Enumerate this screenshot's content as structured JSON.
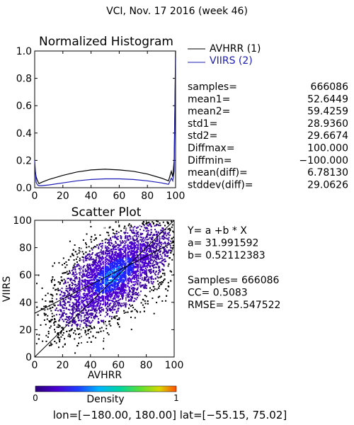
{
  "header": {
    "title": "VCI,  Nov. 17 2016 (week 46)"
  },
  "histogram": {
    "title": "Normalized Histogram",
    "legend": [
      {
        "label": "AVHRR (1)",
        "color": "#000000"
      },
      {
        "label": "VIIRS (2)",
        "color": "#1a1ab4"
      }
    ]
  },
  "stats": [
    {
      "label": "samples=",
      "value": "666086"
    },
    {
      "label": "mean1=",
      "value": "52.6449"
    },
    {
      "label": "mean2=",
      "value": "59.4259"
    },
    {
      "label": "std1=",
      "value": "28.9360"
    },
    {
      "label": "std2=",
      "value": "29.6674"
    },
    {
      "label": "Diffmax=",
      "value": "100.000"
    },
    {
      "label": "Diffmin=",
      "value": "−100.000"
    },
    {
      "label": "mean(diff)=",
      "value": "6.78130"
    },
    {
      "label": "stddev(diff)=",
      "value": "29.0626"
    }
  ],
  "scatter": {
    "title": "Scatter Plot",
    "xlabel": "AVHRR",
    "ylabel": "VIIRS",
    "regression": [
      "Y= a +b * X",
      "a= 31.991592",
      "b= 0.52112383",
      "",
      "Samples= 666086",
      "CC=  0.5083",
      "RMSE= 25.547522"
    ]
  },
  "colorbar": {
    "label": "Density",
    "min_label": "0",
    "max_label": "1"
  },
  "footer": {
    "text": "lon=[−180.00, 180.00] lat=[−55.15, 75.02]"
  },
  "chart_data": [
    {
      "type": "line",
      "xlim": [
        0,
        100
      ],
      "ylim": [
        0,
        1.0
      ],
      "xticks": [
        "0",
        "20",
        "40",
        "60",
        "80",
        "100"
      ],
      "yticks": [
        "0.0",
        "0.2",
        "0.4",
        "0.6",
        "0.8",
        "1.0"
      ],
      "series": [
        {
          "name": "AVHRR (1)",
          "color": "#000000",
          "x": [
            0,
            1,
            2,
            3,
            5,
            10,
            20,
            30,
            40,
            50,
            60,
            70,
            80,
            90,
            95,
            97,
            98,
            99,
            100
          ],
          "y": [
            0.15,
            0.08,
            0.05,
            0.03,
            0.04,
            0.06,
            0.09,
            0.115,
            0.13,
            0.135,
            0.13,
            0.12,
            0.1,
            0.07,
            0.05,
            0.12,
            0.08,
            0.2,
            1.0
          ]
        },
        {
          "name": "VIIRS (2)",
          "color": "#1a1ab4",
          "x": [
            0,
            1,
            2,
            3,
            5,
            10,
            20,
            30,
            40,
            50,
            60,
            70,
            80,
            90,
            95,
            97,
            98,
            99,
            100
          ],
          "y": [
            0.2,
            0.04,
            0.02,
            0.015,
            0.015,
            0.02,
            0.035,
            0.05,
            0.06,
            0.065,
            0.065,
            0.06,
            0.05,
            0.035,
            0.025,
            0.07,
            0.05,
            0.12,
            0.95
          ]
        }
      ]
    },
    {
      "type": "scatter",
      "xlim": [
        0,
        100
      ],
      "ylim": [
        0,
        100
      ],
      "xticks": [
        "0",
        "20",
        "40",
        "60",
        "80",
        "100"
      ],
      "yticks": [
        "0",
        "20",
        "40",
        "60",
        "80",
        "100"
      ],
      "samples": 666086,
      "intercept_a": 31.991592,
      "slope_b": 0.52112383,
      "density_center": [
        56,
        60
      ],
      "density_spread": [
        21,
        19
      ],
      "correlation": 0.5083,
      "density_colors": [
        "#000000",
        "#3a00a0",
        "#4a00d0",
        "#2020ff",
        "#00a0ff",
        "#00e0c0",
        "#40e040",
        "#c0e000",
        "#ffa000",
        "#ff4000"
      ]
    }
  ]
}
